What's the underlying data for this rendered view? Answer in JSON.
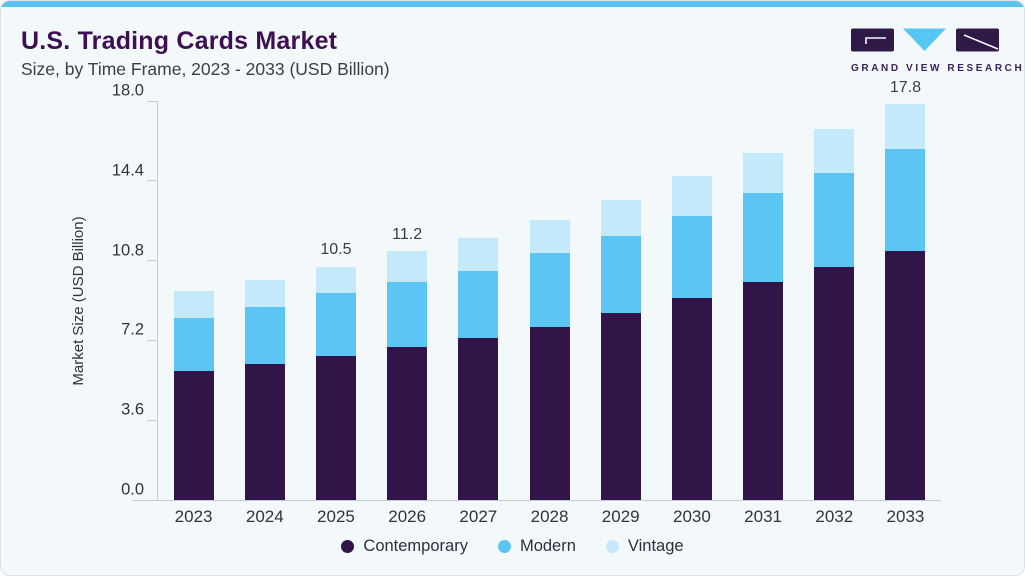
{
  "header": {
    "title": "U.S. Trading Cards Market",
    "subtitle": "Size, by Time Frame, 2023 - 2033 (USD Billion)"
  },
  "logo": {
    "text": "GRAND VIEW RESEARCH",
    "icon": "gvr-logo-icon",
    "purple": "#2f1a47",
    "blue": "#56c7f2"
  },
  "colors": {
    "card_background": "#f3f8fb",
    "card_border": "#d9e2ea",
    "top_strip": "#5ac3ee",
    "title_text": "#3e1053",
    "axis_line": "#c4ccd4",
    "axis_text": "#32333b",
    "contemporary": "#321548",
    "modern": "#5bc6f3",
    "vintage": "#c3e9fb"
  },
  "chart_data": {
    "type": "bar",
    "stacked": true,
    "title": "U.S. Trading Cards Market Size, by Time Frame, 2023 - 2033 (USD Billion)",
    "ylabel": "Market Size (USD Billion)",
    "xlabel": "",
    "ylim": [
      0,
      18
    ],
    "yticks": [
      "0.0",
      "3.6",
      "7.2",
      "10.8",
      "14.4",
      "18.0"
    ],
    "grid": false,
    "legend_position": "bottom",
    "categories": [
      "2023",
      "2024",
      "2025",
      "2026",
      "2027",
      "2028",
      "2029",
      "2030",
      "2031",
      "2032",
      "2033"
    ],
    "series": [
      {
        "name": "Contemporary",
        "color": "#321548",
        "values": [
          5.8,
          6.1,
          6.5,
          6.9,
          7.3,
          7.8,
          8.4,
          9.1,
          9.8,
          10.5,
          11.2
        ]
      },
      {
        "name": "Modern",
        "color": "#5bc6f3",
        "values": [
          2.4,
          2.6,
          2.8,
          2.9,
          3.0,
          3.3,
          3.5,
          3.7,
          4.0,
          4.2,
          4.6
        ]
      },
      {
        "name": "Vintage",
        "color": "#c3e9fb",
        "values": [
          1.2,
          1.2,
          1.2,
          1.4,
          1.5,
          1.5,
          1.6,
          1.8,
          1.8,
          2.0,
          2.0
        ]
      }
    ],
    "bar_labels": [
      "",
      "",
      "10.5",
      "11.2",
      "",
      "",
      "",
      "",
      "",
      "",
      "17.8"
    ]
  }
}
